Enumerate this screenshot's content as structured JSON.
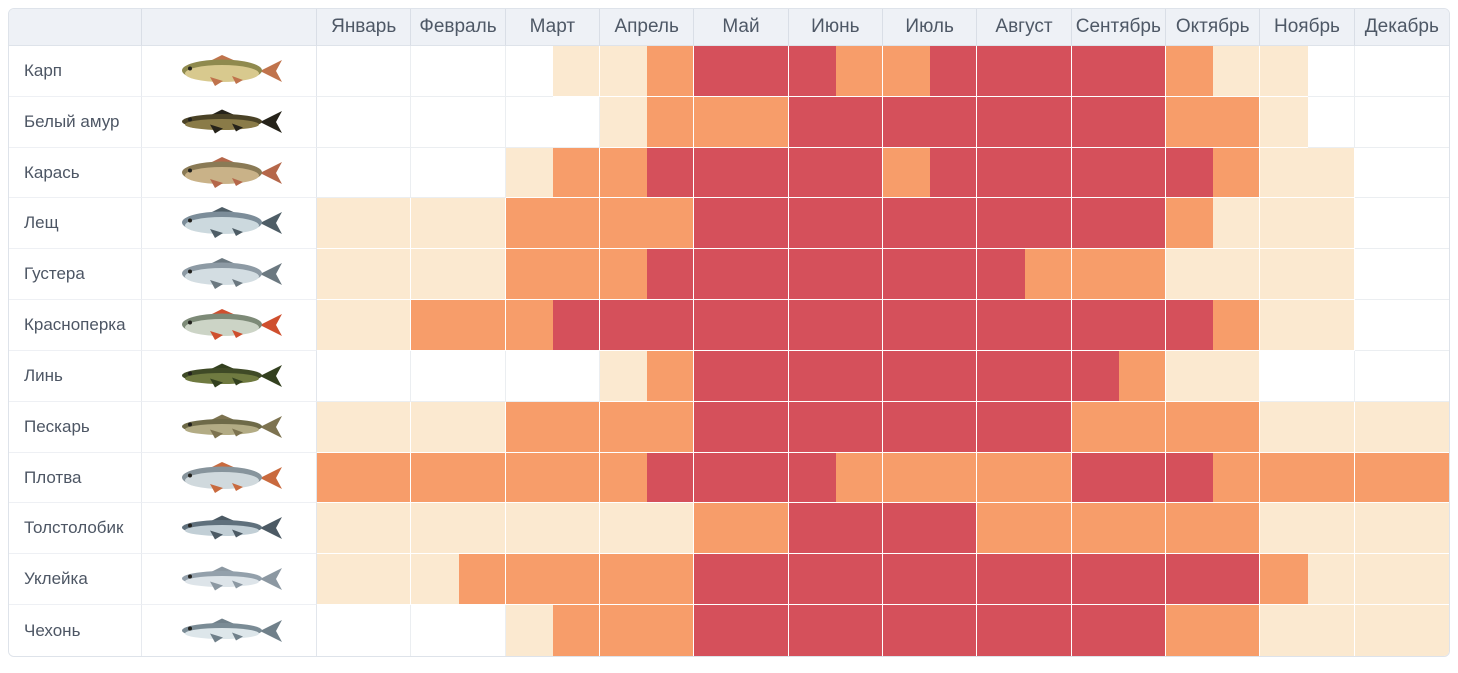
{
  "header": {
    "months": [
      "Январь",
      "Февраль",
      "Март",
      "Апрель",
      "Май",
      "Июнь",
      "Июль",
      "Август",
      "Сентябрь",
      "Октябрь",
      "Ноябрь",
      "Декабрь"
    ]
  },
  "palette": {
    "level0": "#ffffff",
    "level1": "#fbe9d0",
    "level2": "#f79d6a",
    "level3": "#d5505b",
    "header_bg": "#eef1f6",
    "header_text": "#4e5866",
    "header_border": "#d9dee6",
    "body_text": "#4d5664",
    "grid_line": "#ebeef1",
    "white_line": "#ffffff",
    "outer_border": "#dee3ea"
  },
  "fishes": [
    {
      "name": "Карп",
      "icon": "carp-fish-icon",
      "shape": "deep",
      "colors": {
        "back": "#8f8a4e",
        "belly": "#d8c98e",
        "fin": "#c0734c"
      },
      "values": [
        0,
        0,
        0,
        0,
        0,
        1,
        1,
        2,
        3,
        3,
        3,
        2,
        2,
        3,
        3,
        3,
        3,
        3,
        2,
        1,
        1,
        0,
        0,
        0
      ]
    },
    {
      "name": "Белый амур",
      "icon": "grass-carp-fish-icon",
      "shape": "slim",
      "colors": {
        "back": "#4a4226",
        "belly": "#8a7b48",
        "fin": "#26231a"
      },
      "values": [
        0,
        0,
        0,
        0,
        0,
        0,
        1,
        2,
        2,
        2,
        3,
        3,
        3,
        3,
        3,
        3,
        3,
        3,
        2,
        2,
        1,
        0,
        0,
        0
      ]
    },
    {
      "name": "Карась",
      "icon": "crucian-fish-icon",
      "shape": "deep",
      "colors": {
        "back": "#8a7a55",
        "belly": "#c9b288",
        "fin": "#b5674a"
      },
      "values": [
        0,
        0,
        0,
        0,
        1,
        2,
        2,
        3,
        3,
        3,
        3,
        3,
        2,
        3,
        3,
        3,
        3,
        3,
        3,
        2,
        1,
        1,
        0,
        0
      ]
    },
    {
      "name": "Лещ",
      "icon": "bream-fish-icon",
      "shape": "deep",
      "colors": {
        "back": "#7c8d99",
        "belly": "#ccd9de",
        "fin": "#4e5d66"
      },
      "values": [
        1,
        1,
        1,
        1,
        2,
        2,
        2,
        2,
        3,
        3,
        3,
        3,
        3,
        3,
        3,
        3,
        3,
        3,
        2,
        1,
        1,
        1,
        0,
        0
      ]
    },
    {
      "name": "Густера",
      "icon": "silver-bream-fish-icon",
      "shape": "deep",
      "colors": {
        "back": "#8d9aa4",
        "belly": "#d3dde2",
        "fin": "#6b7880"
      },
      "values": [
        1,
        1,
        1,
        1,
        2,
        2,
        2,
        3,
        3,
        3,
        3,
        3,
        3,
        3,
        3,
        2,
        2,
        2,
        1,
        1,
        1,
        1,
        0,
        0
      ]
    },
    {
      "name": "Красноперка",
      "icon": "rudd-fish-icon",
      "shape": "deep",
      "colors": {
        "back": "#7d8a77",
        "belly": "#ccd4c6",
        "fin": "#cf4f2e"
      },
      "values": [
        1,
        1,
        2,
        2,
        2,
        3,
        3,
        3,
        3,
        3,
        3,
        3,
        3,
        3,
        3,
        3,
        3,
        3,
        3,
        2,
        1,
        1,
        0,
        0
      ]
    },
    {
      "name": "Линь",
      "icon": "tench-fish-icon",
      "shape": "slim",
      "colors": {
        "back": "#3f4a26",
        "belly": "#6f7a40",
        "fin": "#33401f"
      },
      "values": [
        0,
        0,
        0,
        0,
        0,
        0,
        1,
        2,
        3,
        3,
        3,
        3,
        3,
        3,
        3,
        3,
        3,
        2,
        1,
        1,
        0,
        0,
        0,
        0
      ]
    },
    {
      "name": "Пескарь",
      "icon": "gudgeon-fish-icon",
      "shape": "slim",
      "colors": {
        "back": "#6e6a48",
        "belly": "#b3ac85",
        "fin": "#7d7350"
      },
      "values": [
        1,
        1,
        1,
        1,
        2,
        2,
        2,
        2,
        3,
        3,
        3,
        3,
        3,
        3,
        3,
        3,
        2,
        2,
        2,
        2,
        1,
        1,
        1,
        1
      ]
    },
    {
      "name": "Плотва",
      "icon": "roach-fish-icon",
      "shape": "deep",
      "colors": {
        "back": "#87949c",
        "belly": "#d0d9dd",
        "fin": "#c96a3e"
      },
      "values": [
        2,
        2,
        2,
        2,
        2,
        2,
        2,
        3,
        3,
        3,
        3,
        2,
        2,
        2,
        2,
        2,
        3,
        3,
        3,
        2,
        2,
        2,
        2,
        2
      ]
    },
    {
      "name": "Толстолобик",
      "icon": "silver-carp-fish-icon",
      "shape": "slim",
      "colors": {
        "back": "#5f707c",
        "belly": "#c2cfd6",
        "fin": "#4c5a64"
      },
      "values": [
        1,
        1,
        1,
        1,
        1,
        1,
        1,
        1,
        2,
        2,
        3,
        3,
        3,
        3,
        2,
        2,
        2,
        2,
        2,
        2,
        1,
        1,
        1,
        1
      ]
    },
    {
      "name": "Уклейка",
      "icon": "bleak-fish-icon",
      "shape": "slim",
      "colors": {
        "back": "#93a0ab",
        "belly": "#dde4e9",
        "fin": "#8c98a2"
      },
      "values": [
        1,
        1,
        1,
        2,
        2,
        2,
        2,
        2,
        3,
        3,
        3,
        3,
        3,
        3,
        3,
        3,
        3,
        3,
        3,
        3,
        2,
        1,
        1,
        1
      ]
    },
    {
      "name": "Чехонь",
      "icon": "sabrefish-fish-icon",
      "shape": "slim",
      "colors": {
        "back": "#7a8b95",
        "belly": "#dde6ea",
        "fin": "#70808a"
      },
      "values": [
        0,
        0,
        0,
        0,
        1,
        2,
        2,
        2,
        3,
        3,
        3,
        3,
        3,
        3,
        3,
        3,
        3,
        3,
        2,
        2,
        1,
        1,
        1,
        1
      ]
    }
  ],
  "chart_data": {
    "type": "heatmap",
    "title": "",
    "x_categories": [
      "Январь",
      "Февраль",
      "Март",
      "Апрель",
      "Май",
      "Июнь",
      "Июль",
      "Август",
      "Сентябрь",
      "Октябрь",
      "Ноябрь",
      "Декабрь"
    ],
    "slots_per_month": 2,
    "value_scale": [
      0,
      1,
      2,
      3
    ],
    "value_colors": {
      "0": "#ffffff",
      "1": "#fbe9d0",
      "2": "#f79d6a",
      "3": "#d5505b"
    },
    "series": [
      {
        "name": "Карп",
        "values": [
          0,
          0,
          0,
          0,
          0,
          1,
          1,
          2,
          3,
          3,
          3,
          2,
          2,
          3,
          3,
          3,
          3,
          3,
          2,
          1,
          1,
          0,
          0,
          0
        ]
      },
      {
        "name": "Белый амур",
        "values": [
          0,
          0,
          0,
          0,
          0,
          0,
          1,
          2,
          2,
          2,
          3,
          3,
          3,
          3,
          3,
          3,
          3,
          3,
          2,
          2,
          1,
          0,
          0,
          0
        ]
      },
      {
        "name": "Карась",
        "values": [
          0,
          0,
          0,
          0,
          1,
          2,
          2,
          3,
          3,
          3,
          3,
          3,
          2,
          3,
          3,
          3,
          3,
          3,
          3,
          2,
          1,
          1,
          0,
          0
        ]
      },
      {
        "name": "Лещ",
        "values": [
          1,
          1,
          1,
          1,
          2,
          2,
          2,
          2,
          3,
          3,
          3,
          3,
          3,
          3,
          3,
          3,
          3,
          3,
          2,
          1,
          1,
          1,
          0,
          0
        ]
      },
      {
        "name": "Густера",
        "values": [
          1,
          1,
          1,
          1,
          2,
          2,
          2,
          3,
          3,
          3,
          3,
          3,
          3,
          3,
          3,
          2,
          2,
          2,
          1,
          1,
          1,
          1,
          0,
          0
        ]
      },
      {
        "name": "Красноперка",
        "values": [
          1,
          1,
          2,
          2,
          2,
          3,
          3,
          3,
          3,
          3,
          3,
          3,
          3,
          3,
          3,
          3,
          3,
          3,
          3,
          2,
          1,
          1,
          0,
          0
        ]
      },
      {
        "name": "Линь",
        "values": [
          0,
          0,
          0,
          0,
          0,
          0,
          1,
          2,
          3,
          3,
          3,
          3,
          3,
          3,
          3,
          3,
          3,
          2,
          1,
          1,
          0,
          0,
          0,
          0
        ]
      },
      {
        "name": "Пескарь",
        "values": [
          1,
          1,
          1,
          1,
          2,
          2,
          2,
          2,
          3,
          3,
          3,
          3,
          3,
          3,
          3,
          3,
          2,
          2,
          2,
          2,
          1,
          1,
          1,
          1
        ]
      },
      {
        "name": "Плотва",
        "values": [
          2,
          2,
          2,
          2,
          2,
          2,
          2,
          3,
          3,
          3,
          3,
          2,
          2,
          2,
          2,
          2,
          3,
          3,
          3,
          2,
          2,
          2,
          2,
          2
        ]
      },
      {
        "name": "Толстолобик",
        "values": [
          1,
          1,
          1,
          1,
          1,
          1,
          1,
          1,
          2,
          2,
          3,
          3,
          3,
          3,
          2,
          2,
          2,
          2,
          2,
          2,
          1,
          1,
          1,
          1
        ]
      },
      {
        "name": "Уклейка",
        "values": [
          1,
          1,
          1,
          2,
          2,
          2,
          2,
          2,
          3,
          3,
          3,
          3,
          3,
          3,
          3,
          3,
          3,
          3,
          3,
          3,
          2,
          1,
          1,
          1
        ]
      },
      {
        "name": "Чехонь",
        "values": [
          0,
          0,
          0,
          0,
          1,
          2,
          2,
          2,
          3,
          3,
          3,
          3,
          3,
          3,
          3,
          3,
          3,
          3,
          2,
          2,
          1,
          1,
          1,
          1
        ]
      }
    ]
  }
}
